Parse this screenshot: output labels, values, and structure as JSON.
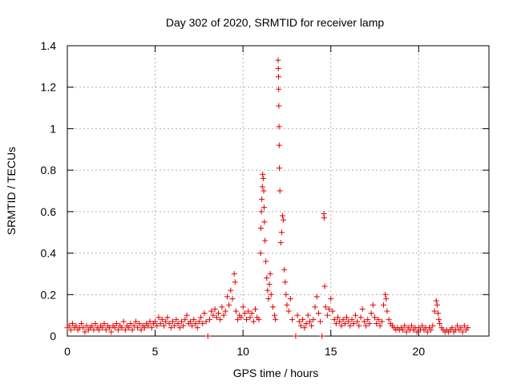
{
  "chart_data": {
    "type": "scatter",
    "title": "Day 302 of 2020, SRMTID for receiver lamp",
    "xlabel": "GPS time / hours",
    "ylabel": "SRMTID / TECUs",
    "xlim": [
      0,
      24
    ],
    "ylim": [
      0,
      1.4
    ],
    "xticks": [
      0,
      5,
      10,
      15,
      20
    ],
    "xtick_labels": [
      "0",
      "5",
      "10",
      "15",
      "20"
    ],
    "yticks": [
      0,
      0.2,
      0.4,
      0.6,
      0.8,
      1.0,
      1.2,
      1.4
    ],
    "ytick_labels": [
      "0",
      "0.2",
      "0.4",
      "0.6",
      "0.8",
      "1",
      "1.2",
      "1.4"
    ],
    "grid": true,
    "marker": "+",
    "color": "#e00000",
    "series": [
      {
        "name": "SRMTID",
        "points": [
          [
            0.0,
            0.04
          ],
          [
            0.1,
            0.05
          ],
          [
            0.2,
            0.03
          ],
          [
            0.3,
            0.06
          ],
          [
            0.4,
            0.04
          ],
          [
            0.5,
            0.05
          ],
          [
            0.6,
            0.03
          ],
          [
            0.7,
            0.04
          ],
          [
            0.8,
            0.06
          ],
          [
            0.9,
            0.04
          ],
          [
            1.0,
            0.02
          ],
          [
            1.1,
            0.05
          ],
          [
            1.2,
            0.03
          ],
          [
            1.3,
            0.04
          ],
          [
            1.4,
            0.05
          ],
          [
            1.5,
            0.03
          ],
          [
            1.6,
            0.06
          ],
          [
            1.7,
            0.04
          ],
          [
            1.8,
            0.03
          ],
          [
            1.9,
            0.05
          ],
          [
            2.0,
            0.04
          ],
          [
            2.1,
            0.06
          ],
          [
            2.2,
            0.03
          ],
          [
            2.3,
            0.05
          ],
          [
            2.4,
            0.04
          ],
          [
            2.5,
            0.02
          ],
          [
            2.6,
            0.05
          ],
          [
            2.7,
            0.04
          ],
          [
            2.8,
            0.06
          ],
          [
            2.9,
            0.03
          ],
          [
            3.0,
            0.05
          ],
          [
            3.1,
            0.04
          ],
          [
            3.2,
            0.07
          ],
          [
            3.3,
            0.03
          ],
          [
            3.4,
            0.05
          ],
          [
            3.5,
            0.04
          ],
          [
            3.6,
            0.06
          ],
          [
            3.7,
            0.03
          ],
          [
            3.8,
            0.05
          ],
          [
            3.9,
            0.07
          ],
          [
            4.0,
            0.04
          ],
          [
            4.1,
            0.06
          ],
          [
            4.2,
            0.03
          ],
          [
            4.3,
            0.05
          ],
          [
            4.4,
            0.04
          ],
          [
            4.5,
            0.06
          ],
          [
            4.6,
            0.05
          ],
          [
            4.7,
            0.07
          ],
          [
            4.8,
            0.04
          ],
          [
            4.9,
            0.06
          ],
          [
            5.0,
            0.07
          ],
          [
            5.1,
            0.05
          ],
          [
            5.2,
            0.09
          ],
          [
            5.3,
            0.06
          ],
          [
            5.4,
            0.08
          ],
          [
            5.5,
            0.05
          ],
          [
            5.6,
            0.07
          ],
          [
            5.7,
            0.09
          ],
          [
            5.8,
            0.06
          ],
          [
            5.9,
            0.04
          ],
          [
            6.0,
            0.07
          ],
          [
            6.1,
            0.05
          ],
          [
            6.2,
            0.08
          ],
          [
            6.3,
            0.06
          ],
          [
            6.4,
            0.04
          ],
          [
            6.5,
            0.07
          ],
          [
            6.6,
            0.05
          ],
          [
            6.7,
            0.08
          ],
          [
            6.8,
            0.1
          ],
          [
            6.9,
            0.06
          ],
          [
            7.0,
            0.07
          ],
          [
            7.1,
            0.05
          ],
          [
            7.2,
            0.08
          ],
          [
            7.3,
            0.06
          ],
          [
            7.4,
            0.04
          ],
          [
            7.5,
            0.07
          ],
          [
            7.6,
            0.09
          ],
          [
            7.7,
            0.06
          ],
          [
            7.8,
            0.11
          ],
          [
            7.9,
            0.07
          ],
          [
            8.0,
            0.0
          ],
          [
            8.1,
            0.08
          ],
          [
            8.2,
            0.12
          ],
          [
            8.3,
            0.1
          ],
          [
            8.4,
            0.13
          ],
          [
            8.5,
            0.09
          ],
          [
            8.6,
            0.11
          ],
          [
            8.7,
            0.08
          ],
          [
            8.8,
            0.14
          ],
          [
            8.9,
            0.1
          ],
          [
            9.0,
            0.12
          ],
          [
            9.1,
            0.19
          ],
          [
            9.2,
            0.15
          ],
          [
            9.3,
            0.22
          ],
          [
            9.4,
            0.18
          ],
          [
            9.5,
            0.3
          ],
          [
            9.55,
            0.26
          ],
          [
            9.6,
            0.12
          ],
          [
            9.7,
            0.08
          ],
          [
            9.8,
            0.1
          ],
          [
            9.9,
            0.09
          ],
          [
            10.0,
            0.14
          ],
          [
            10.1,
            0.11
          ],
          [
            10.2,
            0.08
          ],
          [
            10.3,
            0.12
          ],
          [
            10.4,
            0.09
          ],
          [
            10.5,
            0.11
          ],
          [
            10.6,
            0.07
          ],
          [
            10.7,
            0.13
          ],
          [
            10.8,
            0.09
          ],
          [
            10.9,
            0.08
          ],
          [
            11.0,
            0.4
          ],
          [
            11.02,
            0.52
          ],
          [
            11.05,
            0.6
          ],
          [
            11.07,
            0.66
          ],
          [
            11.1,
            0.72
          ],
          [
            11.12,
            0.78
          ],
          [
            11.15,
            0.76
          ],
          [
            11.18,
            0.7
          ],
          [
            11.2,
            0.62
          ],
          [
            11.22,
            0.55
          ],
          [
            11.25,
            0.46
          ],
          [
            11.3,
            0.36
          ],
          [
            11.35,
            0.28
          ],
          [
            11.4,
            0.22
          ],
          [
            11.45,
            0.18
          ],
          [
            11.5,
            0.25
          ],
          [
            11.55,
            0.3
          ],
          [
            11.6,
            0.2
          ],
          [
            11.7,
            0.14
          ],
          [
            11.8,
            0.1
          ],
          [
            11.85,
            0.08
          ],
          [
            12.0,
            1.33
          ],
          [
            12.01,
            1.29
          ],
          [
            12.02,
            1.25
          ],
          [
            12.03,
            1.19
          ],
          [
            12.04,
            1.11
          ],
          [
            12.05,
            1.01
          ],
          [
            12.06,
            0.92
          ],
          [
            12.07,
            0.81
          ],
          [
            12.1,
            0.7
          ],
          [
            12.15,
            0.45
          ],
          [
            12.2,
            0.5
          ],
          [
            12.25,
            0.58
          ],
          [
            12.3,
            0.56
          ],
          [
            12.35,
            0.32
          ],
          [
            12.4,
            0.26
          ],
          [
            12.45,
            0.2
          ],
          [
            12.5,
            0.15
          ],
          [
            12.6,
            0.12
          ],
          [
            12.7,
            0.18
          ],
          [
            12.8,
            0.08
          ],
          [
            13.0,
            0.0
          ],
          [
            13.1,
            0.1
          ],
          [
            13.2,
            0.07
          ],
          [
            13.3,
            0.05
          ],
          [
            13.4,
            0.08
          ],
          [
            13.5,
            0.04
          ],
          [
            13.6,
            0.06
          ],
          [
            13.7,
            0.1
          ],
          [
            13.8,
            0.07
          ],
          [
            13.9,
            0.05
          ],
          [
            14.0,
            0.08
          ],
          [
            14.1,
            0.14
          ],
          [
            14.2,
            0.19
          ],
          [
            14.3,
            0.11
          ],
          [
            14.4,
            0.07
          ],
          [
            14.5,
            0.0
          ],
          [
            14.6,
            0.59
          ],
          [
            14.62,
            0.57
          ],
          [
            14.65,
            0.24
          ],
          [
            14.7,
            0.14
          ],
          [
            14.8,
            0.1
          ],
          [
            14.9,
            0.13
          ],
          [
            15.0,
            0.18
          ],
          [
            15.1,
            0.12
          ],
          [
            15.2,
            0.08
          ],
          [
            15.3,
            0.06
          ],
          [
            15.4,
            0.09
          ],
          [
            15.5,
            0.07
          ],
          [
            15.6,
            0.05
          ],
          [
            15.7,
            0.08
          ],
          [
            15.8,
            0.06
          ],
          [
            15.9,
            0.09
          ],
          [
            16.0,
            0.07
          ],
          [
            16.1,
            0.05
          ],
          [
            16.2,
            0.08
          ],
          [
            16.3,
            0.06
          ],
          [
            16.4,
            0.1
          ],
          [
            16.5,
            0.07
          ],
          [
            16.6,
            0.05
          ],
          [
            16.7,
            0.09
          ],
          [
            16.8,
            0.13
          ],
          [
            16.9,
            0.07
          ],
          [
            17.0,
            0.05
          ],
          [
            17.1,
            0.08
          ],
          [
            17.2,
            0.06
          ],
          [
            17.3,
            0.11
          ],
          [
            17.4,
            0.15
          ],
          [
            17.5,
            0.09
          ],
          [
            17.6,
            0.06
          ],
          [
            17.7,
            0.08
          ],
          [
            17.8,
            0.05
          ],
          [
            17.9,
            0.07
          ],
          [
            18.0,
            0.15
          ],
          [
            18.1,
            0.2
          ],
          [
            18.15,
            0.18
          ],
          [
            18.2,
            0.12
          ],
          [
            18.3,
            0.08
          ],
          [
            18.4,
            0.06
          ],
          [
            18.5,
            0.05
          ],
          [
            18.6,
            0.04
          ],
          [
            18.7,
            0.03
          ],
          [
            18.8,
            0.04
          ],
          [
            18.9,
            0.03
          ],
          [
            19.0,
            0.04
          ],
          [
            19.1,
            0.03
          ],
          [
            19.2,
            0.05
          ],
          [
            19.3,
            0.02
          ],
          [
            19.4,
            0.04
          ],
          [
            19.5,
            0.03
          ],
          [
            19.6,
            0.05
          ],
          [
            19.7,
            0.03
          ],
          [
            19.8,
            0.04
          ],
          [
            19.9,
            0.02
          ],
          [
            20.0,
            0.04
          ],
          [
            20.1,
            0.03
          ],
          [
            20.2,
            0.05
          ],
          [
            20.3,
            0.03
          ],
          [
            20.4,
            0.04
          ],
          [
            20.5,
            0.02
          ],
          [
            20.6,
            0.04
          ],
          [
            20.7,
            0.03
          ],
          [
            20.8,
            0.05
          ],
          [
            20.9,
            0.12
          ],
          [
            21.0,
            0.17
          ],
          [
            21.05,
            0.15
          ],
          [
            21.1,
            0.11
          ],
          [
            21.15,
            0.08
          ],
          [
            21.2,
            0.06
          ],
          [
            21.3,
            0.04
          ],
          [
            21.4,
            0.03
          ],
          [
            21.5,
            0.02
          ],
          [
            21.6,
            0.03
          ],
          [
            21.7,
            0.02
          ],
          [
            21.8,
            0.03
          ],
          [
            21.9,
            0.04
          ],
          [
            22.0,
            0.02
          ],
          [
            22.1,
            0.03
          ],
          [
            22.2,
            0.05
          ],
          [
            22.3,
            0.03
          ],
          [
            22.4,
            0.04
          ],
          [
            22.5,
            0.02
          ],
          [
            22.6,
            0.05
          ],
          [
            22.7,
            0.03
          ],
          [
            22.8,
            0.04
          ]
        ]
      }
    ]
  }
}
